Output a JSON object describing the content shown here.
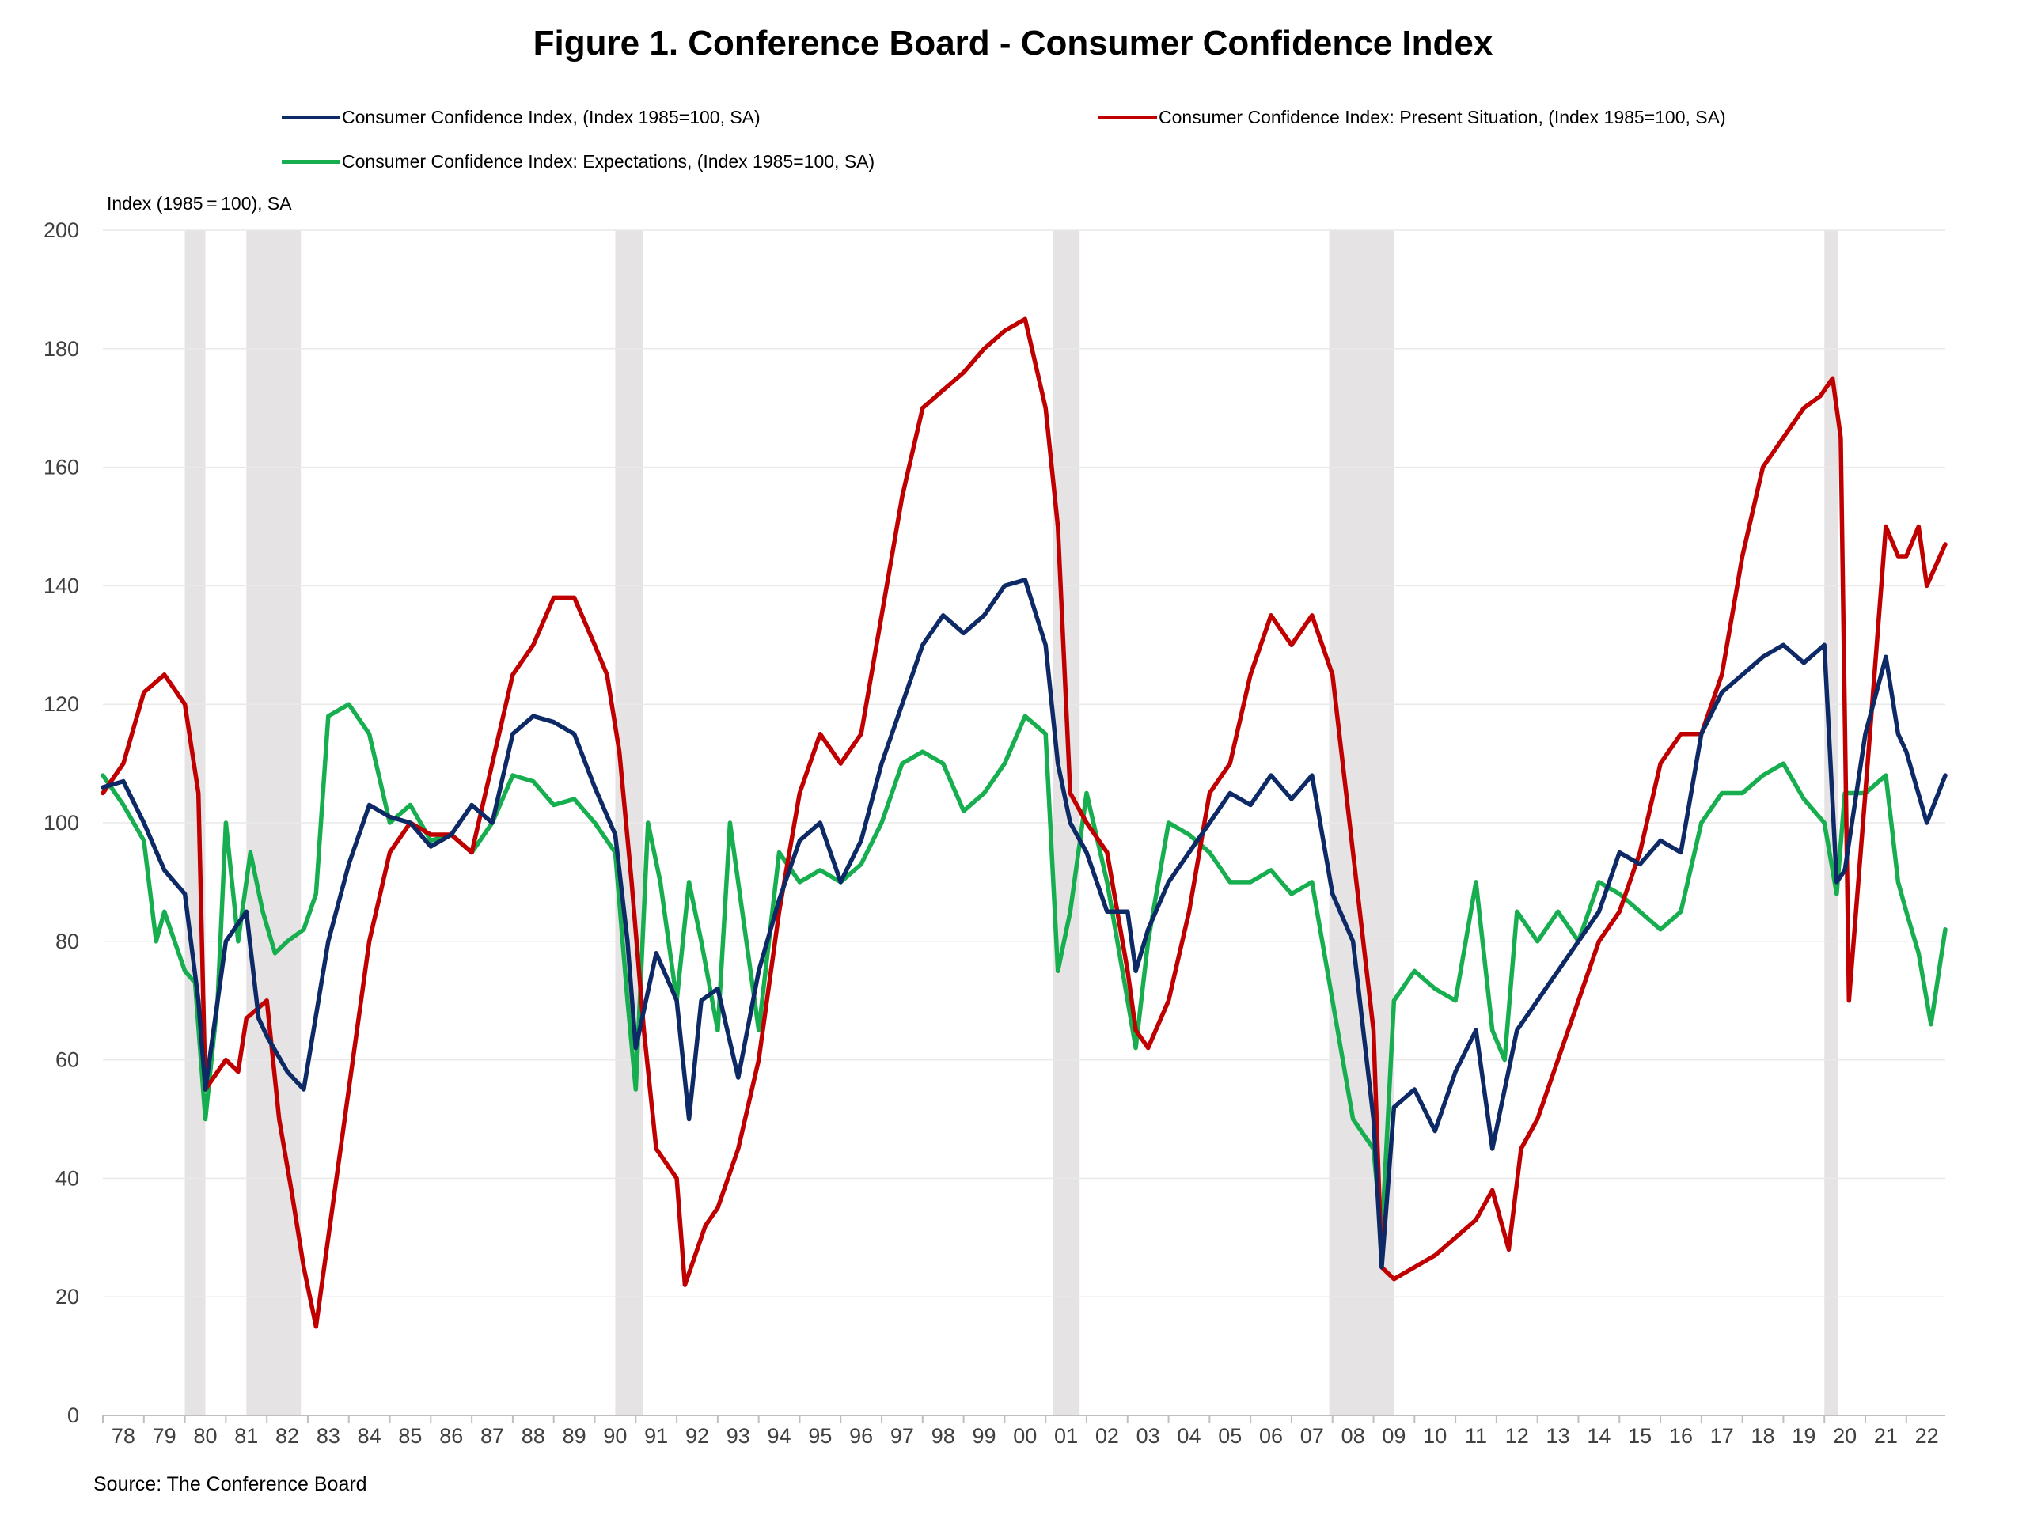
{
  "title": "Figure 1. Conference Board - Consumer Confidence Index",
  "y_axis_unit": "Index (1985 = 100), SA",
  "source": "Source: The Conference Board",
  "chart_data": {
    "type": "line",
    "title": "Figure 1. Conference Board - Consumer Confidence Index",
    "xlabel": "",
    "ylabel": "Index (1985 = 100), SA",
    "xlim": [
      1978.0,
      2022.95
    ],
    "ylim": [
      0,
      200
    ],
    "y_ticks": [
      0,
      20,
      40,
      60,
      80,
      100,
      120,
      140,
      160,
      180,
      200
    ],
    "x_tick_labels": [
      "78",
      "79",
      "80",
      "81",
      "82",
      "83",
      "84",
      "85",
      "86",
      "87",
      "88",
      "89",
      "90",
      "91",
      "92",
      "93",
      "94",
      "95",
      "96",
      "97",
      "98",
      "99",
      "00",
      "01",
      "02",
      "03",
      "04",
      "05",
      "06",
      "07",
      "08",
      "09",
      "10",
      "11",
      "12",
      "13",
      "14",
      "15",
      "16",
      "17",
      "18",
      "19",
      "20",
      "21",
      "22"
    ],
    "grid": "horizontal",
    "legend_position": "top",
    "recessions": [
      [
        1980.0,
        1980.5
      ],
      [
        1981.5,
        1982.83
      ],
      [
        1990.5,
        1991.17
      ],
      [
        2001.17,
        2001.83
      ],
      [
        2007.92,
        2009.5
      ],
      [
        2020.0,
        2020.33
      ]
    ],
    "recession_color": "#e6e3e4",
    "series": [
      {
        "name": "Consumer Confidence Index, (Index 1985=100, SA)",
        "color": "#0e2a66",
        "x": [
          1978.0,
          1978.5,
          1979.0,
          1979.5,
          1980.0,
          1980.33,
          1980.5,
          1981.0,
          1981.5,
          1981.8,
          1982.0,
          1982.5,
          1982.9,
          1983.5,
          1984.0,
          1984.5,
          1985.0,
          1985.5,
          1986.0,
          1986.5,
          1987.0,
          1987.5,
          1988.0,
          1988.5,
          1989.0,
          1989.5,
          1990.0,
          1990.5,
          1990.8,
          1991.0,
          1991.5,
          1992.0,
          1992.3,
          1992.6,
          1993.0,
          1993.5,
          1994.0,
          1994.5,
          1995.0,
          1995.5,
          1996.0,
          1996.5,
          1997.0,
          1997.5,
          1998.0,
          1998.5,
          1999.0,
          1999.5,
          2000.0,
          2000.5,
          2001.0,
          2001.3,
          2001.6,
          2002.0,
          2002.5,
          2003.0,
          2003.2,
          2003.5,
          2004.0,
          2004.5,
          2005.0,
          2005.5,
          2006.0,
          2006.5,
          2007.0,
          2007.5,
          2008.0,
          2008.5,
          2009.0,
          2009.2,
          2009.5,
          2010.0,
          2010.5,
          2011.0,
          2011.5,
          2011.9,
          2012.5,
          2013.0,
          2013.5,
          2014.0,
          2014.5,
          2015.0,
          2015.5,
          2016.0,
          2016.5,
          2017.0,
          2017.5,
          2018.0,
          2018.5,
          2019.0,
          2019.5,
          2020.0,
          2020.3,
          2020.5,
          2021.0,
          2021.5,
          2021.8,
          2022.0,
          2022.5,
          2022.95
        ],
        "values": [
          106,
          107,
          100,
          92,
          88,
          70,
          55,
          80,
          85,
          67,
          64,
          58,
          55,
          80,
          93,
          103,
          101,
          100,
          96,
          98,
          103,
          100,
          115,
          118,
          117,
          115,
          106,
          98,
          80,
          62,
          78,
          70,
          50,
          70,
          72,
          57,
          75,
          87,
          97,
          100,
          90,
          97,
          110,
          120,
          130,
          135,
          132,
          135,
          140,
          141,
          130,
          110,
          100,
          95,
          85,
          85,
          75,
          82,
          90,
          95,
          100,
          105,
          103,
          108,
          104,
          108,
          88,
          80,
          50,
          25,
          52,
          55,
          48,
          58,
          65,
          45,
          65,
          70,
          75,
          80,
          85,
          95,
          93,
          97,
          95,
          115,
          122,
          125,
          128,
          130,
          127,
          130,
          90,
          92,
          115,
          128,
          115,
          112,
          100,
          108
        ]
      },
      {
        "name": "Consumer Confidence Index: Present Situation, (Index 1985=100, SA)",
        "color": "#c00000",
        "x": [
          1978.0,
          1978.5,
          1979.0,
          1979.5,
          1980.0,
          1980.33,
          1980.5,
          1981.0,
          1981.3,
          1981.5,
          1982.0,
          1982.3,
          1982.6,
          1982.9,
          1983.2,
          1983.5,
          1984.0,
          1984.5,
          1985.0,
          1985.5,
          1986.0,
          1986.5,
          1987.0,
          1987.5,
          1988.0,
          1988.5,
          1989.0,
          1989.5,
          1990.0,
          1990.3,
          1990.6,
          1990.9,
          1991.2,
          1991.5,
          1991.8,
          1992.0,
          1992.2,
          1992.4,
          1992.7,
          1993.0,
          1993.5,
          1994.0,
          1994.5,
          1995.0,
          1995.5,
          1996.0,
          1996.5,
          1997.0,
          1997.5,
          1998.0,
          1998.5,
          1999.0,
          1999.5,
          2000.0,
          2000.5,
          2001.0,
          2001.3,
          2001.6,
          2002.0,
          2002.5,
          2003.0,
          2003.2,
          2003.5,
          2004.0,
          2004.5,
          2005.0,
          2005.5,
          2006.0,
          2006.5,
          2007.0,
          2007.5,
          2008.0,
          2008.5,
          2009.0,
          2009.2,
          2009.5,
          2010.0,
          2010.5,
          2011.0,
          2011.5,
          2011.9,
          2012.3,
          2012.6,
          2013.0,
          2013.5,
          2014.0,
          2014.5,
          2015.0,
          2015.5,
          2016.0,
          2016.5,
          2017.0,
          2017.5,
          2018.0,
          2018.5,
          2019.0,
          2019.5,
          2019.9,
          2020.2,
          2020.4,
          2020.6,
          2021.0,
          2021.5,
          2021.8,
          2022.0,
          2022.3,
          2022.5,
          2022.95
        ],
        "values": [
          105,
          110,
          122,
          125,
          120,
          105,
          55,
          60,
          58,
          67,
          70,
          50,
          38,
          25,
          15,
          30,
          55,
          80,
          95,
          100,
          98,
          98,
          95,
          110,
          125,
          130,
          138,
          138,
          130,
          125,
          112,
          90,
          65,
          45,
          42,
          40,
          22,
          26,
          32,
          35,
          45,
          60,
          85,
          105,
          115,
          110,
          115,
          135,
          155,
          170,
          173,
          176,
          180,
          183,
          185,
          170,
          150,
          105,
          100,
          95,
          75,
          65,
          62,
          70,
          85,
          105,
          110,
          125,
          135,
          130,
          135,
          125,
          95,
          65,
          25,
          23,
          25,
          27,
          30,
          33,
          38,
          28,
          45,
          50,
          60,
          70,
          80,
          85,
          95,
          110,
          115,
          115,
          125,
          145,
          160,
          165,
          170,
          172,
          175,
          165,
          70,
          105,
          150,
          145,
          145,
          150,
          140,
          147
        ]
      },
      {
        "name": "Consumer Confidence Index: Expectations, (Index 1985=100, SA)",
        "color": "#16ae4f",
        "x": [
          1978.0,
          1978.5,
          1979.0,
          1979.3,
          1979.5,
          1980.0,
          1980.25,
          1980.5,
          1980.8,
          1981.0,
          1981.3,
          1981.6,
          1981.9,
          1982.2,
          1982.5,
          1982.9,
          1983.2,
          1983.5,
          1984.0,
          1984.5,
          1985.0,
          1985.5,
          1986.0,
          1986.5,
          1987.0,
          1987.5,
          1988.0,
          1988.5,
          1989.0,
          1989.5,
          1990.0,
          1990.5,
          1990.8,
          1991.0,
          1991.3,
          1991.6,
          1992.0,
          1992.3,
          1992.6,
          1993.0,
          1993.3,
          1993.6,
          1994.0,
          1994.5,
          1995.0,
          1995.5,
          1996.0,
          1996.5,
          1997.0,
          1997.5,
          1998.0,
          1998.5,
          1999.0,
          1999.5,
          2000.0,
          2000.5,
          2001.0,
          2001.3,
          2001.6,
          2002.0,
          2002.5,
          2003.0,
          2003.2,
          2003.5,
          2004.0,
          2004.5,
          2005.0,
          2005.5,
          2006.0,
          2006.5,
          2007.0,
          2007.5,
          2008.0,
          2008.5,
          2009.0,
          2009.2,
          2009.5,
          2010.0,
          2010.5,
          2011.0,
          2011.5,
          2011.9,
          2012.2,
          2012.5,
          2013.0,
          2013.5,
          2014.0,
          2014.5,
          2015.0,
          2015.5,
          2016.0,
          2016.5,
          2017.0,
          2017.5,
          2018.0,
          2018.5,
          2019.0,
          2019.5,
          2020.0,
          2020.3,
          2020.5,
          2021.0,
          2021.5,
          2021.8,
          2022.0,
          2022.3,
          2022.6,
          2022.95
        ],
        "values": [
          108,
          103,
          97,
          80,
          85,
          75,
          73,
          50,
          70,
          100,
          80,
          95,
          85,
          78,
          80,
          82,
          88,
          118,
          120,
          115,
          100,
          103,
          97,
          98,
          95,
          100,
          108,
          107,
          103,
          104,
          100,
          95,
          70,
          55,
          100,
          90,
          70,
          90,
          80,
          65,
          100,
          85,
          65,
          95,
          90,
          92,
          90,
          93,
          100,
          110,
          112,
          110,
          102,
          105,
          110,
          118,
          115,
          75,
          85,
          105,
          90,
          70,
          62,
          80,
          100,
          98,
          95,
          90,
          90,
          92,
          88,
          90,
          70,
          50,
          45,
          30,
          70,
          75,
          72,
          70,
          90,
          65,
          60,
          85,
          80,
          85,
          80,
          90,
          88,
          85,
          82,
          85,
          100,
          105,
          105,
          108,
          110,
          104,
          100,
          88,
          105,
          105,
          108,
          90,
          85,
          78,
          66,
          82
        ]
      }
    ]
  }
}
